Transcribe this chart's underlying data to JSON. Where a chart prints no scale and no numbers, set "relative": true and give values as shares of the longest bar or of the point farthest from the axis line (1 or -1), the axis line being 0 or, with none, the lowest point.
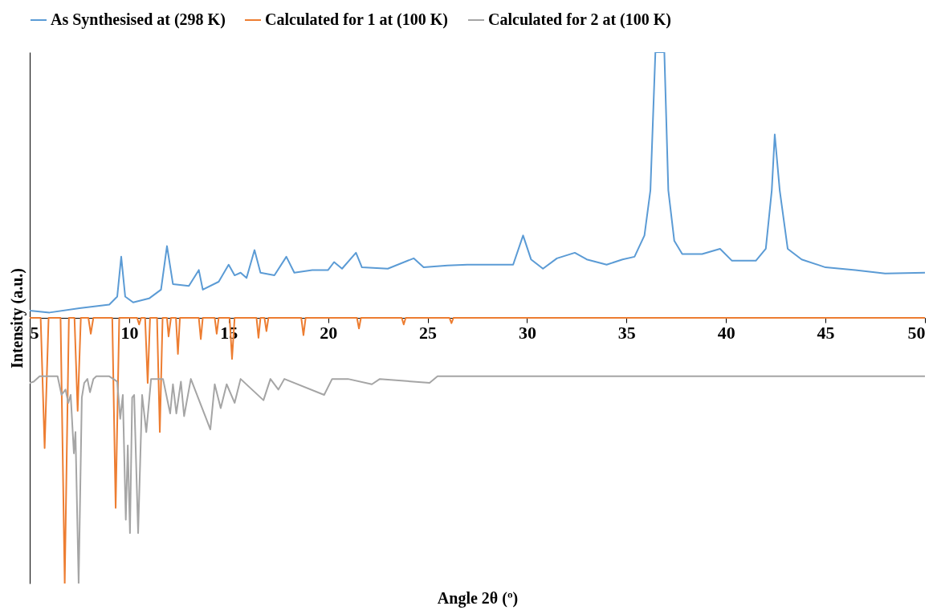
{
  "chart_data": {
    "type": "line",
    "relative": true,
    "xlabel": "Angle 2θ (º)",
    "ylabel": "Intensity (a.u.)",
    "xlim": [
      5,
      50
    ],
    "xticks": [
      5,
      10,
      15,
      20,
      25,
      30,
      35,
      40,
      45,
      50
    ],
    "legend": "top",
    "grid": false,
    "line_style": "solid",
    "series": [
      {
        "name": "As Synthesised at (298 K)",
        "color": "#5b9bd5",
        "x": [
          5,
          6,
          7.5,
          9,
          9.4,
          9.6,
          9.8,
          10.2,
          11,
          11.6,
          11.9,
          12.2,
          13,
          13.5,
          13.7,
          14.5,
          15,
          15.3,
          15.6,
          15.9,
          16.3,
          16.6,
          17.3,
          17.9,
          18.3,
          19.2,
          20,
          20.3,
          20.7,
          21.4,
          21.7,
          23,
          24.3,
          24.8,
          26,
          27,
          28.5,
          29.3,
          29.8,
          30.2,
          30.8,
          31.5,
          32.4,
          33,
          34,
          34.8,
          35.4,
          35.9,
          36.2,
          36.45,
          36.9,
          37.1,
          37.4,
          37.8,
          38.8,
          39.7,
          40.3,
          41.5,
          42,
          42.3,
          42.45,
          42.7,
          43.1,
          43.8,
          45,
          46.5,
          48,
          50
        ],
        "values": [
          0.027,
          0.02,
          0.036,
          0.05,
          0.08,
          0.23,
          0.08,
          0.058,
          0.073,
          0.106,
          0.27,
          0.127,
          0.12,
          0.18,
          0.106,
          0.136,
          0.2,
          0.16,
          0.17,
          0.15,
          0.255,
          0.17,
          0.16,
          0.23,
          0.17,
          0.18,
          0.18,
          0.21,
          0.185,
          0.245,
          0.19,
          0.185,
          0.224,
          0.19,
          0.197,
          0.2,
          0.2,
          0.2,
          0.31,
          0.22,
          0.185,
          0.224,
          0.245,
          0.22,
          0.2,
          0.22,
          0.23,
          0.31,
          0.48,
          1.0,
          1.0,
          0.48,
          0.29,
          0.24,
          0.24,
          0.26,
          0.215,
          0.215,
          0.26,
          0.48,
          0.69,
          0.48,
          0.26,
          0.22,
          0.19,
          0.18,
          0.167,
          0.17
        ]
      },
      {
        "name": "Calculated for 1 at (100 K)",
        "color": "#ed7d31",
        "x": [
          5,
          5.55,
          5.75,
          5.95,
          6.55,
          6.76,
          6.97,
          7.25,
          7.41,
          7.57,
          7.95,
          8.07,
          8.2,
          9.15,
          9.32,
          9.5,
          10.4,
          10.5,
          10.6,
          10.8,
          10.93,
          11.05,
          11.4,
          11.54,
          11.68,
          11.9,
          11.98,
          12.1,
          12.35,
          12.45,
          12.55,
          13.5,
          13.6,
          13.7,
          14.3,
          14.4,
          14.5,
          15.05,
          15.17,
          15.3,
          16.4,
          16.5,
          16.6,
          16.8,
          16.9,
          17.0,
          18.65,
          18.76,
          18.87,
          21.45,
          21.55,
          21.65,
          23.7,
          23.8,
          23.9,
          26.1,
          26.2,
          26.3,
          50
        ],
        "values": [
          0,
          0,
          -0.49,
          0,
          0,
          -1.0,
          0,
          0,
          -0.35,
          0,
          0,
          -0.06,
          0,
          0,
          -0.715,
          0,
          0,
          -0.025,
          0,
          0,
          -0.245,
          0,
          0,
          -0.43,
          0,
          0,
          -0.07,
          0,
          0,
          -0.136,
          0,
          0,
          -0.08,
          0,
          0,
          -0.06,
          0,
          0,
          -0.155,
          0,
          0,
          -0.075,
          0,
          0,
          -0.05,
          0,
          0,
          -0.065,
          0,
          0,
          -0.04,
          0,
          0,
          -0.025,
          0,
          0,
          -0.02,
          0,
          0
        ]
      },
      {
        "name": "Calculated for 2 at (100 K)",
        "color": "#a5a5a5",
        "x": [
          5,
          5.2,
          5.5,
          6.4,
          6.6,
          6.8,
          6.94,
          7.06,
          7.22,
          7.3,
          7.46,
          7.62,
          7.74,
          7.9,
          8.03,
          8.2,
          8.35,
          9.0,
          9.4,
          9.55,
          9.68,
          9.83,
          9.93,
          10.04,
          10.15,
          10.25,
          10.45,
          10.65,
          10.86,
          11.1,
          11.7,
          12.06,
          12.2,
          12.37,
          12.6,
          12.76,
          13.1,
          14.08,
          14.3,
          14.6,
          14.9,
          15.3,
          15.6,
          16.75,
          17.1,
          17.5,
          17.8,
          19.8,
          20.2,
          21,
          22.2,
          22.6,
          25.1,
          25.5,
          26,
          50
        ],
        "values": [
          -0.245,
          -0.24,
          -0.22,
          -0.22,
          -0.29,
          -0.27,
          -0.32,
          -0.29,
          -0.51,
          -0.43,
          -1.0,
          -0.3,
          -0.245,
          -0.23,
          -0.28,
          -0.23,
          -0.22,
          -0.22,
          -0.24,
          -0.38,
          -0.29,
          -0.76,
          -0.48,
          -0.81,
          -0.3,
          -0.29,
          -0.81,
          -0.29,
          -0.43,
          -0.23,
          -0.23,
          -0.36,
          -0.25,
          -0.36,
          -0.24,
          -0.37,
          -0.23,
          -0.42,
          -0.25,
          -0.34,
          -0.25,
          -0.32,
          -0.23,
          -0.31,
          -0.23,
          -0.27,
          -0.23,
          -0.29,
          -0.23,
          -0.23,
          -0.25,
          -0.23,
          -0.245,
          -0.22,
          -0.22,
          -0.22
        ]
      }
    ]
  }
}
